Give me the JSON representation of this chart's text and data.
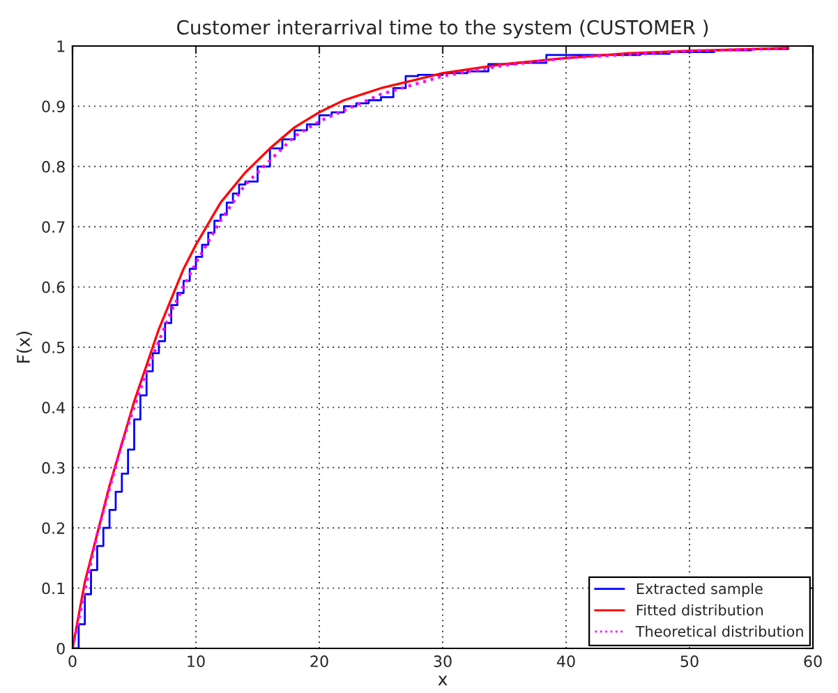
{
  "chart_data": {
    "type": "line",
    "title": "Customer interarrival time to the system (CUSTOMER )",
    "xlabel": "x",
    "ylabel": "F(x)",
    "xlim": [
      0,
      60
    ],
    "xticks": [
      0,
      10,
      20,
      30,
      40,
      50,
      60
    ],
    "ylim": [
      0,
      1
    ],
    "yticks": [
      0,
      0.1,
      0.2,
      0.3,
      0.4,
      0.5,
      0.6,
      0.7,
      0.8,
      0.9,
      1
    ],
    "grid": true,
    "legend": "bottom right",
    "series": [
      {
        "name": "Extracted sample",
        "type": "step",
        "color": "#0000ff",
        "line_style": "solid",
        "x": [
          0,
          0.5,
          1,
          1.5,
          2,
          2.5,
          3,
          3.5,
          4,
          4.5,
          5,
          5.5,
          6,
          6.5,
          7,
          7.5,
          8,
          8.5,
          9,
          9.5,
          10,
          10.5,
          11,
          11.5,
          12,
          12.5,
          13,
          13.5,
          14,
          15,
          16,
          17,
          18,
          19,
          20,
          21,
          22,
          23,
          24,
          25,
          26,
          27,
          28,
          30,
          32,
          33.7,
          36,
          38.4,
          42,
          46,
          48.4,
          52,
          55,
          58
        ],
        "values": [
          0,
          0.04,
          0.09,
          0.13,
          0.17,
          0.2,
          0.23,
          0.26,
          0.29,
          0.33,
          0.38,
          0.42,
          0.46,
          0.49,
          0.51,
          0.54,
          0.57,
          0.59,
          0.61,
          0.63,
          0.65,
          0.67,
          0.69,
          0.71,
          0.72,
          0.74,
          0.755,
          0.77,
          0.775,
          0.8,
          0.83,
          0.845,
          0.86,
          0.87,
          0.885,
          0.89,
          0.9,
          0.905,
          0.91,
          0.915,
          0.93,
          0.95,
          0.952,
          0.955,
          0.958,
          0.97,
          0.972,
          0.985,
          0.985,
          0.987,
          0.99,
          0.993,
          0.995,
          0.998
        ]
      },
      {
        "name": "Fitted distribution",
        "color": "#ff0000",
        "line_style": "solid",
        "x": [
          0,
          1,
          2,
          3,
          4,
          5,
          6,
          7,
          8,
          9,
          10,
          12,
          14,
          16,
          18,
          20,
          22,
          25,
          28,
          30,
          35,
          40,
          45,
          50,
          55,
          58
        ],
        "values": [
          0,
          0.11,
          0.19,
          0.27,
          0.34,
          0.41,
          0.47,
          0.53,
          0.58,
          0.63,
          0.67,
          0.74,
          0.79,
          0.83,
          0.865,
          0.89,
          0.91,
          0.93,
          0.945,
          0.955,
          0.97,
          0.98,
          0.988,
          0.992,
          0.995,
          0.997
        ]
      },
      {
        "name": "Theoretical distribution",
        "color": "#ff00ff",
        "line_style": "dotted",
        "x": [
          0,
          2,
          4,
          6,
          8,
          10,
          12,
          14,
          16,
          18,
          20,
          25,
          30,
          35,
          40,
          50,
          58
        ],
        "values": [
          0,
          0.19,
          0.34,
          0.46,
          0.56,
          0.64,
          0.71,
          0.77,
          0.81,
          0.85,
          0.875,
          0.92,
          0.95,
          0.968,
          0.98,
          0.992,
          0.996
        ]
      }
    ]
  }
}
